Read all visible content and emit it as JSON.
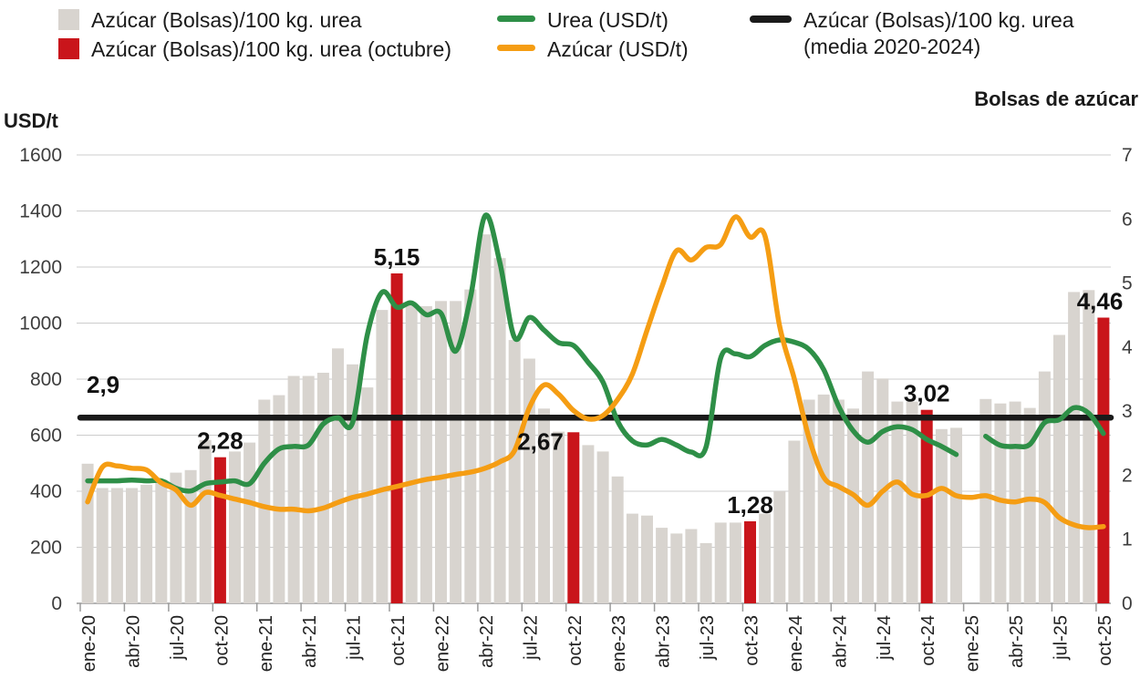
{
  "legend": {
    "items": [
      {
        "label": "Azúcar (Bolsas)/100 kg. urea",
        "swatch": "square",
        "color": "#d8d4cf"
      },
      {
        "label": "Azúcar (Bolsas)/100 kg. urea (octubre)",
        "swatch": "square",
        "color": "#c9151b"
      },
      {
        "label": "Urea (USD/t)",
        "swatch": "line",
        "color": "#2e8f47"
      },
      {
        "label": "Azúcar (USD/t)",
        "swatch": "line",
        "color": "#f59d13"
      },
      {
        "label": "Azúcar (Bolsas)/100 kg. urea (media 2020-2024)",
        "swatch": "line",
        "color": "#1a1a1a"
      }
    ]
  },
  "chart_data": {
    "type": "combo",
    "left_axis": {
      "title": "USD/t",
      "min": 0,
      "max": 1600,
      "tick_step": 200
    },
    "right_axis": {
      "title": "Bolsas de azúcar",
      "min": 0,
      "max": 7,
      "tick_step": 1
    },
    "x_label_every": 3,
    "grid": true,
    "categories": [
      "ene-20",
      "feb-20",
      "mar-20",
      "abr-20",
      "may-20",
      "jun-20",
      "jul-20",
      "ago-20",
      "sep-20",
      "oct-20",
      "nov-20",
      "dic-20",
      "ene-21",
      "feb-21",
      "mar-21",
      "abr-21",
      "may-21",
      "jun-21",
      "jul-21",
      "ago-21",
      "sep-21",
      "oct-21",
      "nov-21",
      "dic-21",
      "ene-22",
      "feb-22",
      "mar-22",
      "abr-22",
      "may-22",
      "jun-22",
      "jul-22",
      "ago-22",
      "sep-22",
      "oct-22",
      "nov-22",
      "dic-22",
      "ene-23",
      "feb-23",
      "mar-23",
      "abr-23",
      "may-23",
      "jun-23",
      "jul-23",
      "ago-23",
      "sep-23",
      "oct-23",
      "nov-23",
      "dic-23",
      "ene-24",
      "feb-24",
      "mar-24",
      "abr-24",
      "may-24",
      "jun-24",
      "jul-24",
      "ago-24",
      "sep-24",
      "oct-24",
      "nov-24",
      "dic-24",
      "ene-25",
      "feb-25",
      "mar-25",
      "abr-25",
      "may-25",
      "jun-25",
      "jul-25",
      "ago-25",
      "sep-25",
      "oct-25"
    ],
    "series": [
      {
        "name": "Azúcar (Bolsas)/100 kg. urea",
        "type": "bar",
        "axis": "right",
        "color": "#d8d4cf",
        "values": [
          2.18,
          1.8,
          1.8,
          1.8,
          1.85,
          1.93,
          2.04,
          2.08,
          2.55,
          2.28,
          2.37,
          2.51,
          3.18,
          3.25,
          3.55,
          3.55,
          3.6,
          3.98,
          3.73,
          3.37,
          4.58,
          5.15,
          4.68,
          4.64,
          4.72,
          4.72,
          4.9,
          5.76,
          5.39,
          4.11,
          3.82,
          3.04,
          2.68,
          2.67,
          2.47,
          2.37,
          1.98,
          1.4,
          1.37,
          1.18,
          1.09,
          1.16,
          0.94,
          1.26,
          1.26,
          1.28,
          1.4,
          1.75,
          2.54,
          3.18,
          3.26,
          3.18,
          3.04,
          3.62,
          3.51,
          3.15,
          3.15,
          3.02,
          2.72,
          2.74,
          null,
          3.19,
          3.12,
          3.15,
          3.05,
          3.62,
          4.19,
          4.86,
          4.89,
          4.46
        ]
      },
      {
        "name": "Azúcar (Bolsas)/100 kg. urea (octubre)",
        "type": "bar-highlight",
        "axis": "right",
        "color": "#c9151b",
        "october_indices": [
          9,
          21,
          33,
          45,
          57,
          69
        ],
        "october_labels": [
          "2,28",
          "5,15",
          "2,67",
          "1,28",
          "3,02",
          "4,46"
        ]
      },
      {
        "name": "Urea (USD/t)",
        "type": "line",
        "axis": "left",
        "color": "#2e8f47",
        "values": [
          437,
          437,
          437,
          440,
          437,
          437,
          411,
          401,
          427,
          433,
          437,
          427,
          500,
          551,
          560,
          565,
          640,
          662,
          645,
          959,
          1110,
          1057,
          1072,
          1030,
          1035,
          900,
          1090,
          1383,
          1216,
          948,
          1020,
          975,
          930,
          920,
          860,
          790,
          650,
          580,
          565,
          585,
          565,
          540,
          557,
          875,
          890,
          880,
          920,
          940,
          932,
          906,
          834,
          704,
          616,
          575,
          613,
          630,
          620,
          585,
          560,
          531,
          null,
          596,
          564,
          560,
          567,
          645,
          655,
          698,
          678,
          606
        ]
      },
      {
        "name": "Azúcar (USD/t)",
        "type": "line",
        "axis": "left",
        "color": "#f59d13",
        "values": [
          362,
          486,
          490,
          482,
          476,
          430,
          405,
          350,
          395,
          385,
          372,
          360,
          345,
          336,
          336,
          330,
          340,
          360,
          378,
          390,
          405,
          417,
          430,
          442,
          450,
          460,
          468,
          482,
          505,
          545,
          698,
          779,
          746,
          688,
          658,
          670,
          727,
          818,
          975,
          1128,
          1258,
          1225,
          1270,
          1280,
          1379,
          1307,
          1313,
          990,
          802,
          590,
          450,
          417,
          388,
          350,
          400,
          433,
          390,
          385,
          410,
          384,
          378,
          384,
          368,
          362,
          372,
          360,
          306,
          280,
          270,
          274
        ]
      },
      {
        "name": "Azúcar (Bolsas)/100 kg. urea (media 2020-2024)",
        "type": "hline",
        "axis": "right",
        "color": "#1a1a1a",
        "value": 2.9,
        "label": "2,9"
      }
    ],
    "annotations": [
      {
        "text": "2,9",
        "attach": "hline",
        "placement": "line-start"
      },
      {
        "text": "2,28",
        "month_index": 9,
        "placement": "above"
      },
      {
        "text": "5,15",
        "month_index": 21,
        "placement": "above"
      },
      {
        "text": "2,67",
        "month_index": 33,
        "placement": "left-of-bar"
      },
      {
        "text": "1,28",
        "month_index": 45,
        "placement": "above"
      },
      {
        "text": "3,02",
        "month_index": 57,
        "placement": "above"
      },
      {
        "text": "4,46",
        "month_index": 69,
        "placement": "above"
      }
    ]
  }
}
